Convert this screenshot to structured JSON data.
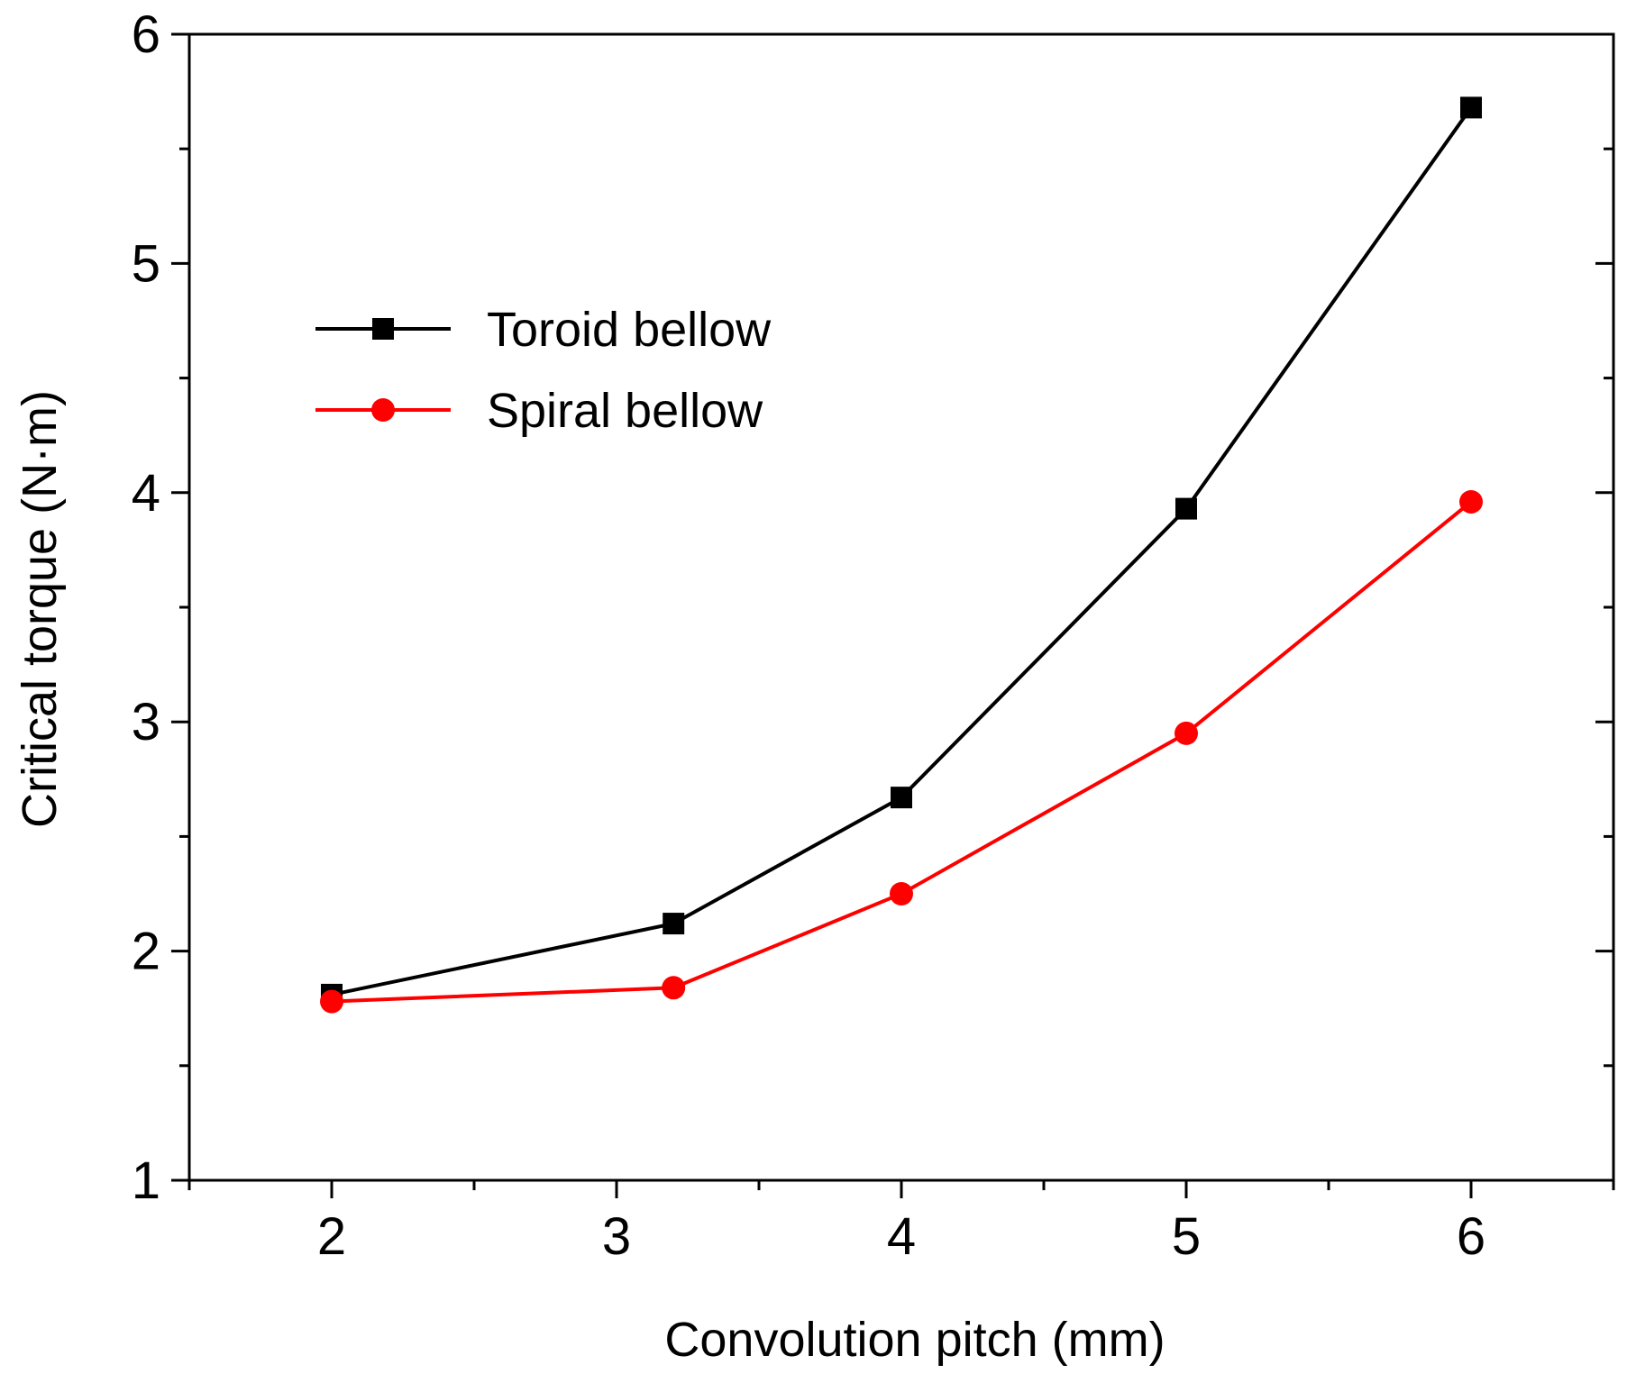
{
  "chart_data": {
    "type": "line",
    "title": "",
    "xlabel": "Convolution pitch (mm)",
    "ylabel": "Critical torque (N·m)",
    "xlim": [
      1.5,
      6.5
    ],
    "ylim": [
      1,
      6
    ],
    "x_ticks": [
      "2",
      "3",
      "4",
      "5",
      "6"
    ],
    "y_ticks": [
      "1",
      "2",
      "3",
      "4",
      "5",
      "6"
    ],
    "x_tick_values": [
      2,
      3,
      4,
      5,
      6
    ],
    "y_tick_values": [
      1,
      2,
      3,
      4,
      5,
      6
    ],
    "grid": false,
    "legend_position": "upper-left",
    "series": [
      {
        "name": "Toroid bellow",
        "color": "#000000",
        "marker": "square",
        "x": [
          2,
          3.2,
          4,
          5,
          6
        ],
        "y": [
          1.81,
          2.12,
          2.67,
          3.93,
          5.68
        ]
      },
      {
        "name": "Spiral bellow",
        "color": "#ff0000",
        "marker": "circle",
        "x": [
          2,
          3.2,
          4,
          5,
          6
        ],
        "y": [
          1.78,
          1.84,
          2.25,
          2.95,
          3.96
        ]
      }
    ]
  }
}
